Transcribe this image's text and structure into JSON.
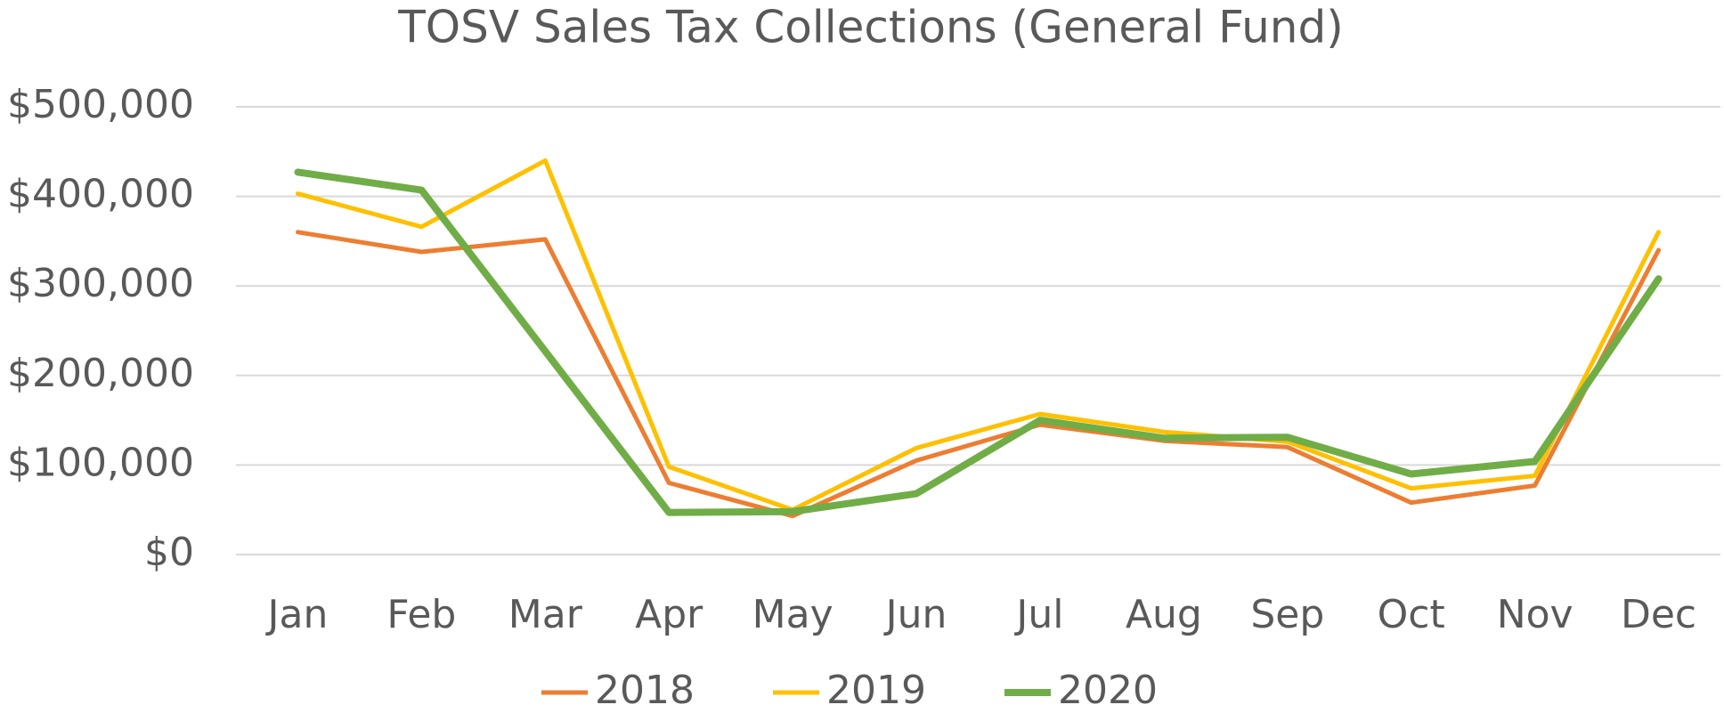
{
  "chart_data": {
    "type": "line",
    "title": "TOSV Sales Tax Collections (General Fund)",
    "categories": [
      "Jan",
      "Feb",
      "Mar",
      "Apr",
      "May",
      "Jun",
      "Jul",
      "Aug",
      "Sep",
      "Oct",
      "Nov",
      "Dec"
    ],
    "series": [
      {
        "name": "2018",
        "color": "#ED7D31",
        "line_width": 5,
        "values": [
          360000,
          338000,
          352000,
          80000,
          43000,
          105000,
          145000,
          127000,
          120000,
          58000,
          77000,
          340000
        ]
      },
      {
        "name": "2019",
        "color": "#FFC000",
        "line_width": 5,
        "values": [
          403000,
          366000,
          440000,
          98000,
          50000,
          119000,
          157000,
          137000,
          126000,
          74000,
          88000,
          360000
        ]
      },
      {
        "name": "2020",
        "color": "#70AD47",
        "line_width": 8,
        "values": [
          427000,
          407000,
          227000,
          47000,
          48000,
          68000,
          150000,
          130000,
          131000,
          90000,
          104000,
          308000
        ]
      }
    ],
    "ylim": [
      0,
      500000
    ],
    "yticks": [
      {
        "value": 0,
        "label": "$0"
      },
      {
        "value": 100000,
        "label": "$100,000"
      },
      {
        "value": 200000,
        "label": "$200,000"
      },
      {
        "value": 300000,
        "label": "$300,000"
      },
      {
        "value": 400000,
        "label": "$400,000"
      },
      {
        "value": 500000,
        "label": "$500,000"
      }
    ],
    "grid": true,
    "legend": "bottom"
  }
}
